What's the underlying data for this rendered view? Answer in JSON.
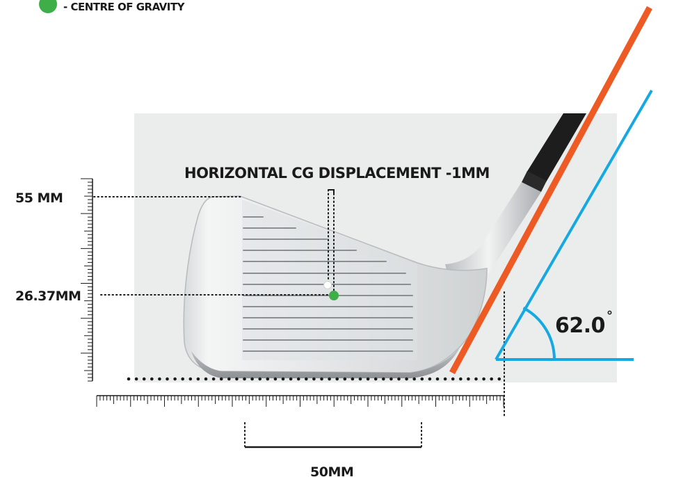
{
  "legend": {
    "swatch_color": "#3fae49",
    "text": "- CENTRE OF GRAVITY"
  },
  "title": "HORIZONTAL CG DISPLACEMENT -1MM",
  "labels": {
    "height_top": "55 MM",
    "height_cg": "26.37MM",
    "width_span": "50MM",
    "lie_angle": "62.0",
    "degree_symbol": "°"
  },
  "measurements": {
    "crown_height_mm": 55,
    "cg_height_mm": 26.37,
    "horizontal_cg_displacement_mm": -1,
    "reference_width_mm": 50,
    "lie_angle_deg": 62.0
  },
  "colors": {
    "shaft_axis": "#ee5a24",
    "angle_lines": "#16a9e1",
    "cg_point": "#3fae49",
    "reference_point": "#ffffff",
    "text": "#1a1a1a",
    "photo_background": "#ebedec"
  }
}
